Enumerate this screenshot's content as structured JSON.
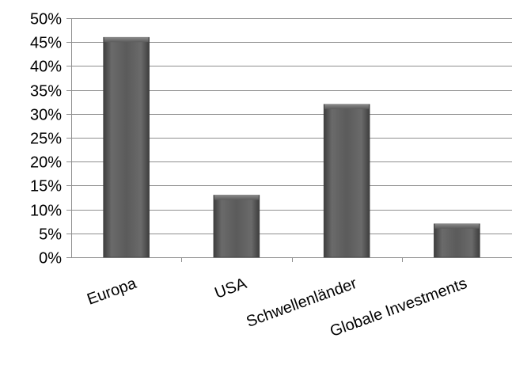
{
  "chart_data": {
    "type": "bar",
    "title": "",
    "xlabel": "",
    "ylabel": "",
    "categories": [
      "Europa",
      "USA",
      "Schwellenländer",
      "Globale Investments"
    ],
    "values": [
      0.46,
      0.13,
      0.32,
      0.07
    ],
    "ylim": [
      0,
      0.5
    ],
    "yticks": [
      0,
      0.05,
      0.1,
      0.15,
      0.2,
      0.25,
      0.3,
      0.35,
      0.4,
      0.45,
      0.5
    ],
    "ytick_labels": [
      "0%",
      "5%",
      "10%",
      "15%",
      "20%",
      "25%",
      "30%",
      "35%",
      "40%",
      "45%",
      "50%"
    ],
    "grid": true,
    "legend": "none",
    "colors": {
      "bar": "#5a5a5a",
      "bar_highlight": "#7a7a7a",
      "bar_shadow": "#3c3c3c",
      "grid": "#8f8f8f"
    }
  }
}
